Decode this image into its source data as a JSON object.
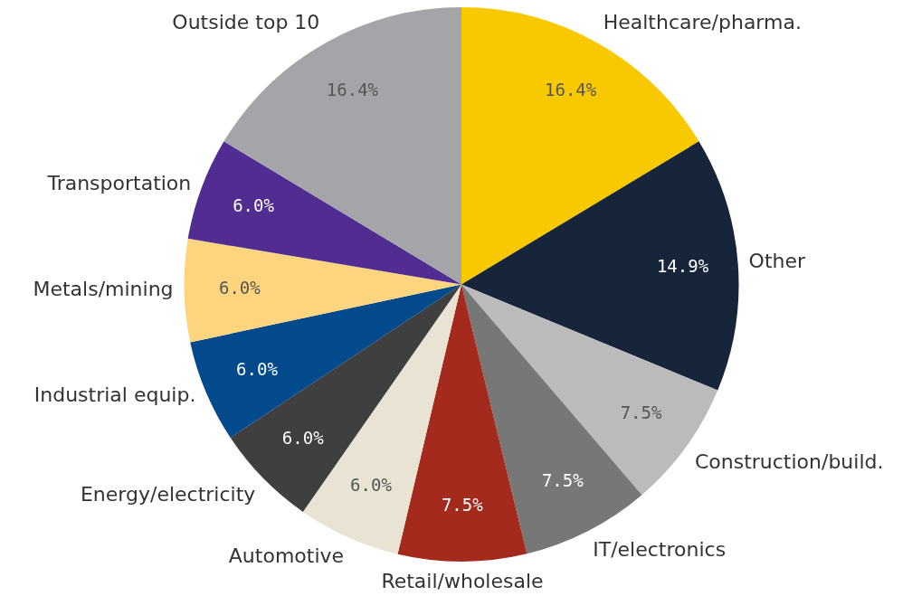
{
  "chart_data": {
    "type": "pie",
    "categories": [
      "Healthcare/pharma.",
      "Other",
      "Construction/build.",
      "IT/electronics",
      "Retail/wholesale",
      "Automotive",
      "Energy/electricity",
      "Industrial equip.",
      "Metals/mining",
      "Transportation",
      "Outside top 10"
    ],
    "values": [
      16.4,
      14.9,
      7.5,
      7.5,
      7.5,
      6.0,
      6.0,
      6.0,
      6.0,
      6.0,
      16.4
    ],
    "value_labels": [
      "16.4%",
      "14.9%",
      "7.5%",
      "7.5%",
      "7.5%",
      "6.0%",
      "6.0%",
      "6.0%",
      "6.0%",
      "6.0%",
      "16.4%"
    ],
    "colors": [
      "#f9c900",
      "#16253a",
      "#bbbbbb",
      "#777777",
      "#a52a1e",
      "#e8e3d3",
      "#3f3f3f",
      "#034a8c",
      "#fdd57e",
      "#522d91",
      "#a3a5a8"
    ],
    "legend": false
  }
}
